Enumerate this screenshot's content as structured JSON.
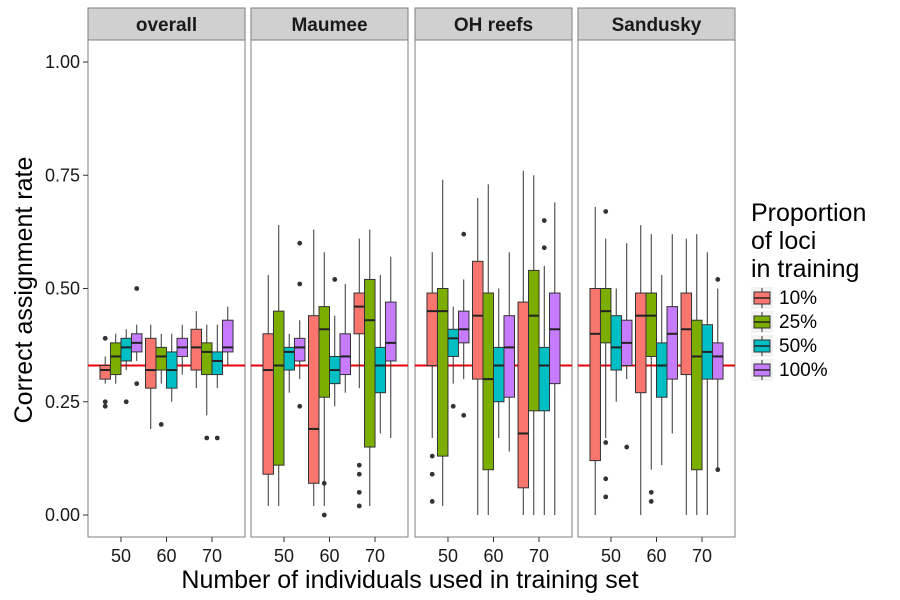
{
  "chart_data": {
    "type": "boxplot",
    "xlabel": "Number of individuals used in training set",
    "ylabel": "Correct assignment rate",
    "ylim": [
      -0.05,
      1.05
    ],
    "yticks": [
      "0.00",
      "0.25",
      "0.50",
      "0.75",
      "1.00"
    ],
    "ytick_values": [
      0,
      0.25,
      0.5,
      0.75,
      1.0
    ],
    "categories": [
      "50",
      "60",
      "70"
    ],
    "reference_line": {
      "y": 0.33,
      "color": "#e8000b"
    },
    "legend": {
      "title_lines": [
        "Proportion",
        "of loci",
        "in training"
      ],
      "placement": "right",
      "entries": [
        "10%",
        "25%",
        "50%",
        "100%"
      ]
    },
    "series_colors": [
      "#f8766d",
      "#7cae00",
      "#00bfc4",
      "#c77cff"
    ],
    "facets": [
      {
        "name": "overall",
        "groups": [
          {
            "x": "50",
            "boxes": [
              {
                "series": "10%",
                "q1": 0.3,
                "median": 0.32,
                "q3": 0.33,
                "whisker_low": 0.29,
                "whisker_high": 0.35,
                "outliers": [
                  0.39,
                  0.25,
                  0.24
                ]
              },
              {
                "series": "25%",
                "q1": 0.31,
                "median": 0.35,
                "q3": 0.38,
                "whisker_low": 0.29,
                "whisker_high": 0.4,
                "outliers": []
              },
              {
                "series": "50%",
                "q1": 0.34,
                "median": 0.37,
                "q3": 0.39,
                "whisker_low": 0.32,
                "whisker_high": 0.41,
                "outliers": [
                  0.25
                ]
              },
              {
                "series": "100%",
                "q1": 0.36,
                "median": 0.38,
                "q3": 0.4,
                "whisker_low": 0.34,
                "whisker_high": 0.42,
                "outliers": [
                  0.29,
                  0.5
                ]
              }
            ]
          },
          {
            "x": "60",
            "boxes": [
              {
                "series": "10%",
                "q1": 0.28,
                "median": 0.32,
                "q3": 0.39,
                "whisker_low": 0.19,
                "whisker_high": 0.42,
                "outliers": []
              },
              {
                "series": "25%",
                "q1": 0.32,
                "median": 0.35,
                "q3": 0.37,
                "whisker_low": 0.29,
                "whisker_high": 0.4,
                "outliers": [
                  0.2
                ]
              },
              {
                "series": "50%",
                "q1": 0.28,
                "median": 0.32,
                "q3": 0.36,
                "whisker_low": 0.25,
                "whisker_high": 0.4,
                "outliers": []
              },
              {
                "series": "100%",
                "q1": 0.35,
                "median": 0.37,
                "q3": 0.39,
                "whisker_low": 0.31,
                "whisker_high": 0.42,
                "outliers": []
              }
            ]
          },
          {
            "x": "70",
            "boxes": [
              {
                "series": "10%",
                "q1": 0.32,
                "median": 0.37,
                "q3": 0.41,
                "whisker_low": 0.28,
                "whisker_high": 0.45,
                "outliers": []
              },
              {
                "series": "25%",
                "q1": 0.31,
                "median": 0.36,
                "q3": 0.38,
                "whisker_low": 0.22,
                "whisker_high": 0.42,
                "outliers": [
                  0.17
                ]
              },
              {
                "series": "50%",
                "q1": 0.31,
                "median": 0.34,
                "q3": 0.36,
                "whisker_low": 0.28,
                "whisker_high": 0.42,
                "outliers": [
                  0.17
                ]
              },
              {
                "series": "100%",
                "q1": 0.36,
                "median": 0.37,
                "q3": 0.43,
                "whisker_low": 0.33,
                "whisker_high": 0.46,
                "outliers": []
              }
            ]
          }
        ]
      },
      {
        "name": "Maumee",
        "groups": [
          {
            "x": "50",
            "boxes": [
              {
                "series": "10%",
                "q1": 0.09,
                "median": 0.32,
                "q3": 0.4,
                "whisker_low": 0.02,
                "whisker_high": 0.53,
                "outliers": []
              },
              {
                "series": "25%",
                "q1": 0.11,
                "median": 0.33,
                "q3": 0.45,
                "whisker_low": 0.02,
                "whisker_high": 0.64,
                "outliers": []
              },
              {
                "series": "50%",
                "q1": 0.32,
                "median": 0.36,
                "q3": 0.37,
                "whisker_low": 0.27,
                "whisker_high": 0.4,
                "outliers": []
              },
              {
                "series": "100%",
                "q1": 0.34,
                "median": 0.37,
                "q3": 0.39,
                "whisker_low": 0.3,
                "whisker_high": 0.43,
                "outliers": [
                  0.6,
                  0.51,
                  0.24
                ]
              }
            ]
          },
          {
            "x": "60",
            "boxes": [
              {
                "series": "10%",
                "q1": 0.07,
                "median": 0.19,
                "q3": 0.44,
                "whisker_low": 0.02,
                "whisker_high": 0.63,
                "outliers": []
              },
              {
                "series": "25%",
                "q1": 0.26,
                "median": 0.41,
                "q3": 0.46,
                "whisker_low": 0.02,
                "whisker_high": 0.58,
                "outliers": [
                  0.07,
                  0.0
                ]
              },
              {
                "series": "50%",
                "q1": 0.29,
                "median": 0.32,
                "q3": 0.35,
                "whisker_low": 0.24,
                "whisker_high": 0.44,
                "outliers": [
                  0.52
                ]
              },
              {
                "series": "100%",
                "q1": 0.31,
                "median": 0.35,
                "q3": 0.4,
                "whisker_low": 0.27,
                "whisker_high": 0.51,
                "outliers": []
              }
            ]
          },
          {
            "x": "70",
            "boxes": [
              {
                "series": "10%",
                "q1": 0.4,
                "median": 0.46,
                "q3": 0.49,
                "whisker_low": 0.28,
                "whisker_high": 0.61,
                "outliers": [
                  0.11,
                  0.09,
                  0.05,
                  0.02
                ]
              },
              {
                "series": "25%",
                "q1": 0.15,
                "median": 0.43,
                "q3": 0.52,
                "whisker_low": 0.02,
                "whisker_high": 0.63,
                "outliers": []
              },
              {
                "series": "50%",
                "q1": 0.27,
                "median": 0.33,
                "q3": 0.37,
                "whisker_low": 0.18,
                "whisker_high": 0.53,
                "outliers": []
              },
              {
                "series": "100%",
                "q1": 0.34,
                "median": 0.38,
                "q3": 0.47,
                "whisker_low": 0.17,
                "whisker_high": 0.57,
                "outliers": []
              }
            ]
          }
        ]
      },
      {
        "name": "OH reefs",
        "groups": [
          {
            "x": "50",
            "boxes": [
              {
                "series": "10%",
                "q1": 0.33,
                "median": 0.45,
                "q3": 0.49,
                "whisker_low": 0.17,
                "whisker_high": 0.58,
                "outliers": [
                  0.13,
                  0.09,
                  0.03
                ]
              },
              {
                "series": "25%",
                "q1": 0.13,
                "median": 0.45,
                "q3": 0.5,
                "whisker_low": 0.02,
                "whisker_high": 0.74,
                "outliers": []
              },
              {
                "series": "50%",
                "q1": 0.35,
                "median": 0.39,
                "q3": 0.41,
                "whisker_low": 0.29,
                "whisker_high": 0.46,
                "outliers": [
                  0.24
                ]
              },
              {
                "series": "100%",
                "q1": 0.38,
                "median": 0.41,
                "q3": 0.45,
                "whisker_low": 0.3,
                "whisker_high": 0.52,
                "outliers": [
                  0.62,
                  0.22
                ]
              }
            ]
          },
          {
            "x": "60",
            "boxes": [
              {
                "series": "10%",
                "q1": 0.3,
                "median": 0.44,
                "q3": 0.56,
                "whisker_low": 0.0,
                "whisker_high": 0.7,
                "outliers": []
              },
              {
                "series": "25%",
                "q1": 0.1,
                "median": 0.3,
                "q3": 0.49,
                "whisker_low": 0.0,
                "whisker_high": 0.73,
                "outliers": []
              },
              {
                "series": "50%",
                "q1": 0.25,
                "median": 0.33,
                "q3": 0.37,
                "whisker_low": 0.17,
                "whisker_high": 0.5,
                "outliers": []
              },
              {
                "series": "100%",
                "q1": 0.26,
                "median": 0.37,
                "q3": 0.44,
                "whisker_low": 0.14,
                "whisker_high": 0.58,
                "outliers": []
              }
            ]
          },
          {
            "x": "70",
            "boxes": [
              {
                "series": "10%",
                "q1": 0.06,
                "median": 0.18,
                "q3": 0.47,
                "whisker_low": 0.0,
                "whisker_high": 0.76,
                "outliers": []
              },
              {
                "series": "25%",
                "q1": 0.23,
                "median": 0.44,
                "q3": 0.54,
                "whisker_low": 0.0,
                "whisker_high": 0.75,
                "outliers": []
              },
              {
                "series": "50%",
                "q1": 0.23,
                "median": 0.33,
                "q3": 0.37,
                "whisker_low": 0.0,
                "whisker_high": 0.55,
                "outliers": [
                  0.65,
                  0.59
                ]
              },
              {
                "series": "100%",
                "q1": 0.29,
                "median": 0.41,
                "q3": 0.49,
                "whisker_low": 0.0,
                "whisker_high": 0.69,
                "outliers": []
              }
            ]
          }
        ]
      },
      {
        "name": "Sandusky",
        "groups": [
          {
            "x": "50",
            "boxes": [
              {
                "series": "10%",
                "q1": 0.12,
                "median": 0.4,
                "q3": 0.5,
                "whisker_low": 0.0,
                "whisker_high": 0.68,
                "outliers": []
              },
              {
                "series": "25%",
                "q1": 0.38,
                "median": 0.45,
                "q3": 0.5,
                "whisker_low": 0.17,
                "whisker_high": 0.61,
                "outliers": [
                  0.67,
                  0.16,
                  0.08,
                  0.04
                ]
              },
              {
                "series": "50%",
                "q1": 0.32,
                "median": 0.37,
                "q3": 0.44,
                "whisker_low": 0.25,
                "whisker_high": 0.5,
                "outliers": []
              },
              {
                "series": "100%",
                "q1": 0.33,
                "median": 0.38,
                "q3": 0.43,
                "whisker_low": 0.3,
                "whisker_high": 0.6,
                "outliers": [
                  0.15
                ]
              }
            ]
          },
          {
            "x": "60",
            "boxes": [
              {
                "series": "10%",
                "q1": 0.27,
                "median": 0.44,
                "q3": 0.49,
                "whisker_low": 0.0,
                "whisker_high": 0.64,
                "outliers": []
              },
              {
                "series": "25%",
                "q1": 0.35,
                "median": 0.44,
                "q3": 0.49,
                "whisker_low": 0.1,
                "whisker_high": 0.62,
                "outliers": [
                  0.05,
                  0.03
                ]
              },
              {
                "series": "50%",
                "q1": 0.26,
                "median": 0.33,
                "q3": 0.38,
                "whisker_low": 0.11,
                "whisker_high": 0.53,
                "outliers": []
              },
              {
                "series": "100%",
                "q1": 0.3,
                "median": 0.4,
                "q3": 0.46,
                "whisker_low": 0.18,
                "whisker_high": 0.62,
                "outliers": []
              }
            ]
          },
          {
            "x": "70",
            "boxes": [
              {
                "series": "10%",
                "q1": 0.31,
                "median": 0.41,
                "q3": 0.49,
                "whisker_low": 0.0,
                "whisker_high": 0.61,
                "outliers": []
              },
              {
                "series": "25%",
                "q1": 0.1,
                "median": 0.35,
                "q3": 0.43,
                "whisker_low": 0.0,
                "whisker_high": 0.62,
                "outliers": []
              },
              {
                "series": "50%",
                "q1": 0.3,
                "median": 0.36,
                "q3": 0.42,
                "whisker_low": 0.0,
                "whisker_high": 0.58,
                "outliers": []
              },
              {
                "series": "100%",
                "q1": 0.3,
                "median": 0.35,
                "q3": 0.38,
                "whisker_low": 0.1,
                "whisker_high": 0.5,
                "outliers": [
                  0.52,
                  0.1
                ]
              }
            ]
          }
        ]
      }
    ]
  }
}
